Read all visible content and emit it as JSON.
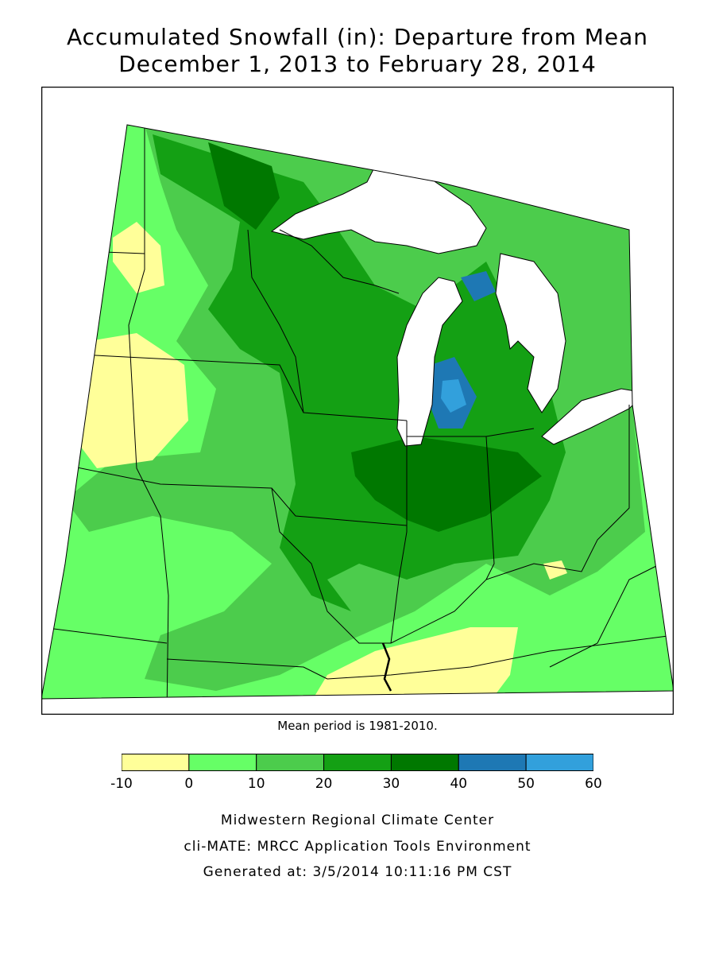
{
  "title": {
    "line1": "Accumulated Snowfall (in): Departure from Mean",
    "line2": "December 1, 2013 to February 28, 2014"
  },
  "mean_period": "Mean period is 1981-2010.",
  "legend": {
    "ticks": [
      "-10",
      "0",
      "10",
      "20",
      "30",
      "40",
      "50",
      "60"
    ],
    "bins": [
      {
        "range": [
          -10,
          0
        ],
        "color": "#ffff99"
      },
      {
        "range": [
          0,
          10
        ],
        "color": "#66ff66"
      },
      {
        "range": [
          10,
          20
        ],
        "color": "#4ccc4c"
      },
      {
        "range": [
          20,
          30
        ],
        "color": "#14a014"
      },
      {
        "range": [
          30,
          40
        ],
        "color": "#007800"
      },
      {
        "range": [
          40,
          50
        ],
        "color": "#1e78b4"
      },
      {
        "range": [
          50,
          60
        ],
        "color": "#32a0dc"
      }
    ]
  },
  "credits": {
    "line1": "Midwestern Regional Climate Center",
    "line2": "cli-MATE: MRCC Application Tools Environment",
    "line3": "Generated at: 3/5/2014 10:11:16 PM CST"
  },
  "colors": {
    "lakes": "#ffffff",
    "borders": "#000000"
  }
}
